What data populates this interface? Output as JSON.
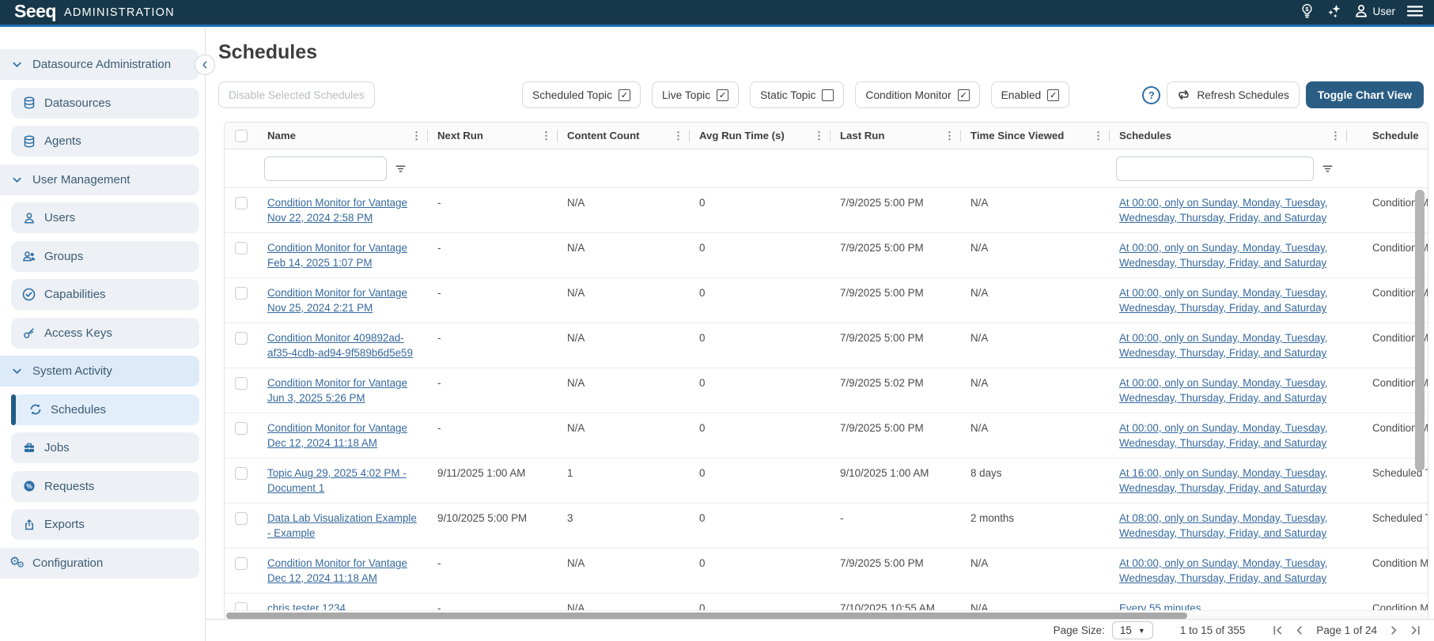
{
  "topbar": {
    "logo_text": "Seeq",
    "app_title": "ADMINISTRATION",
    "user_label": "User",
    "icons": [
      "lightbulb-dollar",
      "sparkles",
      "user",
      "menu"
    ]
  },
  "sidebar": {
    "items": [
      {
        "label": "Datasource Administration",
        "icon": "chevron-down",
        "kind": "section"
      },
      {
        "label": "Datasources",
        "icon": "database",
        "kind": "child"
      },
      {
        "label": "Agents",
        "icon": "database",
        "kind": "child"
      },
      {
        "label": "User Management",
        "icon": "chevron-down",
        "kind": "section"
      },
      {
        "label": "Users",
        "icon": "user",
        "kind": "child"
      },
      {
        "label": "Groups",
        "icon": "users",
        "kind": "child"
      },
      {
        "label": "Capabilities",
        "icon": "check-circle",
        "kind": "child"
      },
      {
        "label": "Access Keys",
        "icon": "key",
        "kind": "child"
      },
      {
        "label": "System Activity",
        "icon": "chevron-down",
        "kind": "section",
        "highlighted": true
      },
      {
        "label": "Schedules",
        "icon": "sync",
        "kind": "child",
        "active": true
      },
      {
        "label": "Jobs",
        "icon": "briefcase",
        "kind": "child"
      },
      {
        "label": "Requests",
        "icon": "percent",
        "kind": "child"
      },
      {
        "label": "Exports",
        "icon": "export",
        "kind": "child"
      },
      {
        "label": "Configuration",
        "icon": "gears",
        "kind": "top"
      }
    ]
  },
  "main": {
    "title": "Schedules",
    "toolbar": {
      "disable_label": "Disable Selected Schedules",
      "filters": [
        {
          "label": "Scheduled Topic",
          "checked": true
        },
        {
          "label": "Live Topic",
          "checked": true
        },
        {
          "label": "Static Topic",
          "checked": false
        },
        {
          "label": "Condition Monitor",
          "checked": true
        },
        {
          "label": "Enabled",
          "checked": true
        }
      ],
      "refresh_label": "Refresh Schedules",
      "toggle_chart_label": "Toggle Chart View"
    },
    "table": {
      "columns": [
        "Name",
        "Next Run",
        "Content Count",
        "Avg Run Time (s)",
        "Last Run",
        "Time Since Viewed",
        "Schedules",
        "Schedule"
      ],
      "rows": [
        {
          "name": "Condition Monitor for Vantage Nov 22, 2024 2:58 PM",
          "next_run": "-",
          "content_count": "N/A",
          "avg_run_time": "0",
          "last_run": "7/9/2025 5:00 PM",
          "time_since_viewed": "N/A",
          "schedules": "At 00:00, only on Sunday, Monday, Tuesday, Wednesday, Thursday, Friday, and Saturday",
          "schedule_type": "Condition Monitor"
        },
        {
          "name": "Condition Monitor for Vantage Feb 14, 2025 1:07 PM",
          "next_run": "-",
          "content_count": "N/A",
          "avg_run_time": "0",
          "last_run": "7/9/2025 5:00 PM",
          "time_since_viewed": "N/A",
          "schedules": "At 00:00, only on Sunday, Monday, Tuesday, Wednesday, Thursday, Friday, and Saturday",
          "schedule_type": "Condition Monitor"
        },
        {
          "name": "Condition Monitor for Vantage Nov 25, 2024 2:21 PM",
          "next_run": "-",
          "content_count": "N/A",
          "avg_run_time": "0",
          "last_run": "7/9/2025 5:00 PM",
          "time_since_viewed": "N/A",
          "schedules": "At 00:00, only on Sunday, Monday, Tuesday, Wednesday, Thursday, Friday, and Saturday",
          "schedule_type": "Condition Monitor"
        },
        {
          "name": "Condition Monitor 409892ad-af35-4cdb-ad94-9f589b6d5e59",
          "next_run": "-",
          "content_count": "N/A",
          "avg_run_time": "0",
          "last_run": "7/9/2025 5:00 PM",
          "time_since_viewed": "N/A",
          "schedules": "At 00:00, only on Sunday, Monday, Tuesday, Wednesday, Thursday, Friday, and Saturday",
          "schedule_type": "Condition Monitor"
        },
        {
          "name": "Condition Monitor for Vantage Jun 3, 2025 5:26 PM",
          "next_run": "-",
          "content_count": "N/A",
          "avg_run_time": "0",
          "last_run": "7/9/2025 5:02 PM",
          "time_since_viewed": "N/A",
          "schedules": "At 00:00, only on Sunday, Monday, Tuesday, Wednesday, Thursday, Friday, and Saturday",
          "schedule_type": "Condition Monitor"
        },
        {
          "name": "Condition Monitor for Vantage Dec 12, 2024 11:18 AM",
          "next_run": "-",
          "content_count": "N/A",
          "avg_run_time": "0",
          "last_run": "7/9/2025 5:00 PM",
          "time_since_viewed": "N/A",
          "schedules": "At 00:00, only on Sunday, Monday, Tuesday, Wednesday, Thursday, Friday, and Saturday",
          "schedule_type": "Condition Monitor"
        },
        {
          "name": "Topic Aug 29, 2025 4:02 PM - Document 1",
          "next_run": "9/11/2025 1:00 AM",
          "content_count": "1",
          "avg_run_time": "0",
          "last_run": "9/10/2025 1:00 AM",
          "time_since_viewed": "8 days",
          "schedules": "At 16:00, only on Sunday, Monday, Tuesday, Wednesday, Thursday, Friday, and Saturday",
          "schedule_type": "Scheduled Topic"
        },
        {
          "name": "Data Lab Visualization Example - Example",
          "next_run": "9/10/2025 5:00 PM",
          "content_count": "3",
          "avg_run_time": "0",
          "last_run": "-",
          "time_since_viewed": "2 months",
          "schedules": "At 08:00, only on Sunday, Monday, Tuesday, Wednesday, Thursday, Friday, and Saturday",
          "schedule_type": "Scheduled Topic"
        },
        {
          "name": "Condition Monitor for Vantage Dec 12, 2024 11:18 AM",
          "next_run": "-",
          "content_count": "N/A",
          "avg_run_time": "0",
          "last_run": "7/9/2025 5:00 PM",
          "time_since_viewed": "N/A",
          "schedules": "At 00:00, only on Sunday, Monday, Tuesday, Wednesday, Thursday, Friday, and Saturday",
          "schedule_type": "Condition Monitor"
        },
        {
          "name": "chris tester 1234",
          "next_run": "-",
          "content_count": "N/A",
          "avg_run_time": "0",
          "last_run": "7/10/2025 10:55 AM",
          "time_since_viewed": "N/A",
          "schedules": "Every 55 minutes",
          "schedule_type": "Condition Monitor"
        }
      ]
    },
    "pagination": {
      "page_size_label": "Page Size:",
      "page_size": "15",
      "range_text": "1 to 15 of 355",
      "page_info": "Page 1 of 24"
    }
  },
  "colors": {
    "topbar_bg": "#17384a",
    "topbar_accent": "#1e6fb5",
    "accent_blue": "#2e6da4",
    "link_blue": "#36699e",
    "active_item_bg": "#e2eefa",
    "active_bar": "#1f5c85",
    "primary_button_bg": "#2a5d84"
  }
}
